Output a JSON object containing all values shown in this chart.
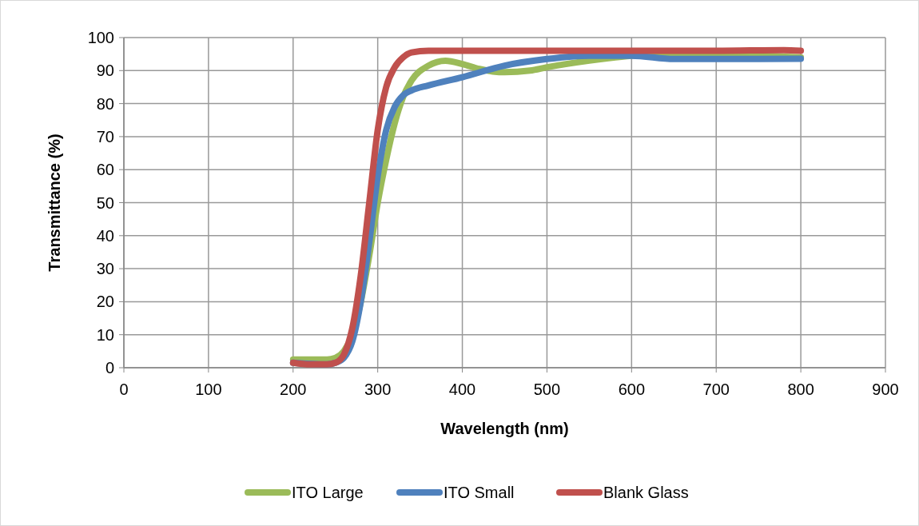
{
  "chart_data": {
    "type": "line",
    "xlabel": "Wavelength (nm)",
    "ylabel": "Transmittance (%)",
    "xlim": [
      0,
      900
    ],
    "xticks": [
      0,
      100,
      200,
      300,
      400,
      500,
      600,
      700,
      800,
      900
    ],
    "ylim": [
      0,
      100
    ],
    "yticks": [
      0,
      10,
      20,
      30,
      40,
      50,
      60,
      70,
      80,
      90,
      100
    ],
    "grid": true,
    "legend": "bottom",
    "marker": "none",
    "line_style": "solid",
    "series": [
      {
        "name": "ITO Large",
        "color": "#9bbb59",
        "x": [
          200,
          240,
          250,
          260,
          270,
          280,
          290,
          300,
          310,
          320,
          330,
          340,
          360,
          380,
          400,
          420,
          450,
          480,
          500,
          550,
          600,
          650,
          700,
          750,
          800
        ],
        "values": [
          2.5,
          2.5,
          3,
          5,
          10,
          20,
          34,
          50,
          63,
          74,
          82,
          87,
          91.5,
          93,
          92,
          90.5,
          89.5,
          90,
          91,
          93,
          94.5,
          95,
          95,
          94.5,
          94
        ]
      },
      {
        "name": "ITO Small",
        "color": "#4f81bd",
        "x": [
          200,
          240,
          250,
          260,
          270,
          280,
          290,
          300,
          310,
          320,
          330,
          340,
          360,
          400,
          450,
          500,
          550,
          600,
          650,
          700,
          750,
          800
        ],
        "values": [
          1.5,
          1,
          1.5,
          3,
          8,
          20,
          38,
          58,
          72,
          79,
          82.5,
          84,
          85.5,
          88,
          91.5,
          93.5,
          94.5,
          94.5,
          93.5,
          93.5,
          93.5,
          93.6
        ]
      },
      {
        "name": "Blank Glass",
        "color": "#c0504d",
        "x": [
          200,
          220,
          240,
          250,
          260,
          270,
          280,
          290,
          300,
          310,
          320,
          330,
          340,
          360,
          400,
          500,
          600,
          700,
          780,
          800
        ],
        "values": [
          1.5,
          1,
          1,
          1.5,
          4,
          12,
          28,
          50,
          72,
          85,
          91,
          94,
          95.5,
          96,
          96,
          96,
          96,
          96,
          96.2,
          96
        ]
      }
    ]
  }
}
